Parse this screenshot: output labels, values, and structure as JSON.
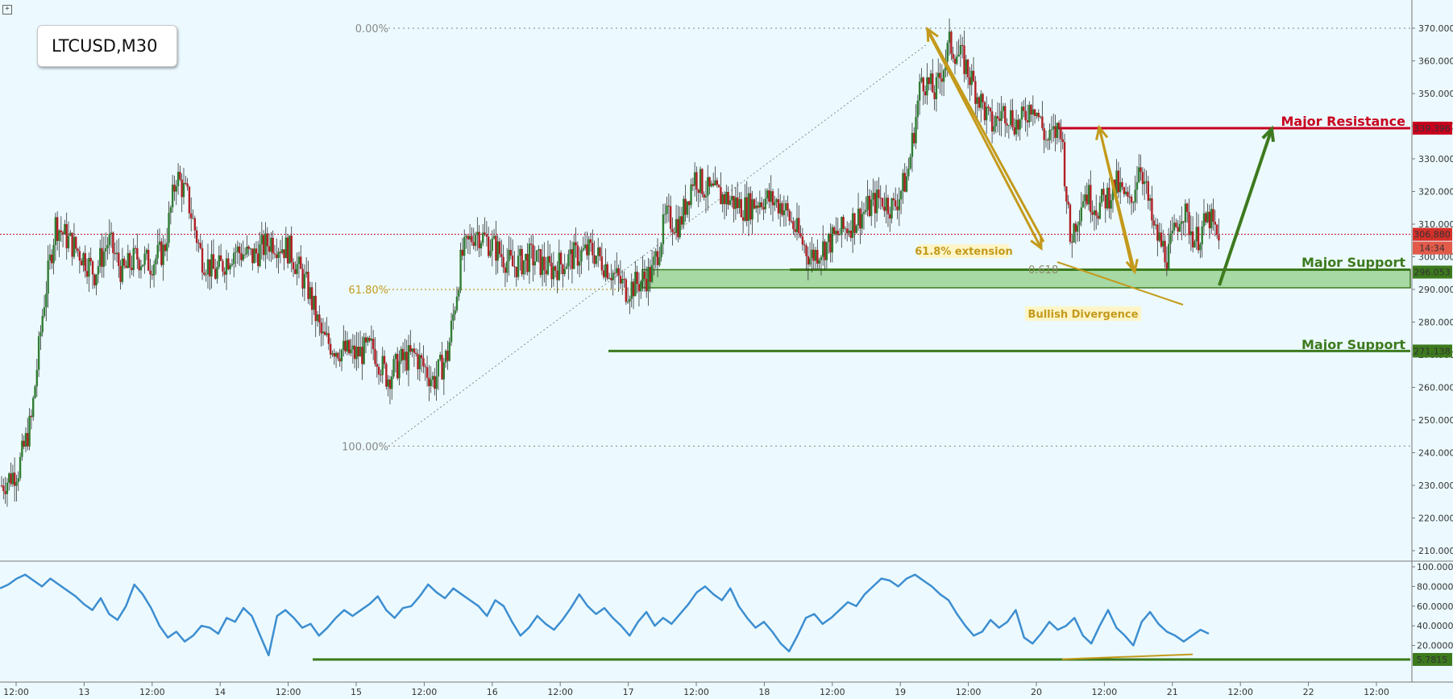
{
  "symbol": "LTCUSD,M30",
  "colors": {
    "background": "#ecfaff",
    "bull_candle": "#2f7d32",
    "bear_candle": "#b11f24",
    "resistance": "#c8001e",
    "support": "#3d7a1e",
    "support_zone": "#8fce85",
    "fib": "#c49a1c",
    "rsi_line": "#3d8ed0",
    "arrow_up": "#3d7a1e",
    "arrow_fib": "#c49a1c"
  },
  "annotations": {
    "major_resistance": "Major Resistance",
    "major_support_1": "Major Support",
    "major_support_2": "Major Support",
    "extension": "61.8% extension",
    "divergence": "Bullish Divergence",
    "fib_0": "0.00%",
    "fib_618": "61.80%",
    "fib_100": "100.00%",
    "fib_ratio": "0.618"
  },
  "price_badges": {
    "resistance": "339.396",
    "current": "306.880",
    "timer": "14:34",
    "support": "296.053",
    "support_2": "271.138",
    "rsi_low": "5.7815"
  },
  "chart_data": [
    {
      "type": "candlestick",
      "title": "LTCUSD,M30",
      "y_ticks": [
        "370.000",
        "360.000",
        "350.000",
        "340.000",
        "330.000",
        "320.000",
        "310.000",
        "300.000",
        "290.000",
        "280.000",
        "270.000",
        "260.000",
        "250.000",
        "240.000",
        "230.000",
        "220.000",
        "210.000"
      ],
      "x_ticks": [
        "12:00",
        "13",
        "12:00",
        "14",
        "12:00",
        "15",
        "12:00",
        "16",
        "12:00",
        "17",
        "12:00",
        "18",
        "12:00",
        "19",
        "12:00",
        "20",
        "12:00",
        "21",
        "12:00",
        "22",
        "12:00"
      ],
      "ylim": [
        207,
        377
      ],
      "close_path": [
        {
          "t": 0,
          "p": 230
        },
        {
          "t": 18,
          "p": 235
        },
        {
          "t": 32,
          "p": 250
        },
        {
          "t": 45,
          "p": 285
        },
        {
          "t": 58,
          "p": 310
        },
        {
          "t": 72,
          "p": 305
        },
        {
          "t": 88,
          "p": 300
        },
        {
          "t": 100,
          "p": 295
        },
        {
          "t": 115,
          "p": 305
        },
        {
          "t": 130,
          "p": 295
        },
        {
          "t": 145,
          "p": 300
        },
        {
          "t": 160,
          "p": 298
        },
        {
          "t": 175,
          "p": 302
        },
        {
          "t": 188,
          "p": 325
        },
        {
          "t": 200,
          "p": 318
        },
        {
          "t": 215,
          "p": 300
        },
        {
          "t": 230,
          "p": 295
        },
        {
          "t": 250,
          "p": 302
        },
        {
          "t": 270,
          "p": 300
        },
        {
          "t": 290,
          "p": 305
        },
        {
          "t": 310,
          "p": 302
        },
        {
          "t": 330,
          "p": 290
        },
        {
          "t": 345,
          "p": 275
        },
        {
          "t": 360,
          "p": 272
        },
        {
          "t": 380,
          "p": 270
        },
        {
          "t": 400,
          "p": 272
        },
        {
          "t": 415,
          "p": 263
        },
        {
          "t": 430,
          "p": 268
        },
        {
          "t": 445,
          "p": 270
        },
        {
          "t": 465,
          "p": 262
        },
        {
          "t": 480,
          "p": 270
        },
        {
          "t": 495,
          "p": 300
        },
        {
          "t": 510,
          "p": 308
        },
        {
          "t": 530,
          "p": 303
        },
        {
          "t": 550,
          "p": 297
        },
        {
          "t": 570,
          "p": 300
        },
        {
          "t": 590,
          "p": 296
        },
        {
          "t": 615,
          "p": 300
        },
        {
          "t": 635,
          "p": 302
        },
        {
          "t": 655,
          "p": 296
        },
        {
          "t": 672,
          "p": 290
        },
        {
          "t": 685,
          "p": 292
        },
        {
          "t": 700,
          "p": 295
        },
        {
          "t": 715,
          "p": 312
        },
        {
          "t": 730,
          "p": 310
        },
        {
          "t": 745,
          "p": 325
        },
        {
          "t": 760,
          "p": 320
        },
        {
          "t": 780,
          "p": 318
        },
        {
          "t": 800,
          "p": 315
        },
        {
          "t": 820,
          "p": 318
        },
        {
          "t": 840,
          "p": 316
        },
        {
          "t": 855,
          "p": 308
        },
        {
          "t": 870,
          "p": 300
        },
        {
          "t": 885,
          "p": 303
        },
        {
          "t": 905,
          "p": 308
        },
        {
          "t": 925,
          "p": 313
        },
        {
          "t": 945,
          "p": 318
        },
        {
          "t": 960,
          "p": 315
        },
        {
          "t": 975,
          "p": 325
        },
        {
          "t": 990,
          "p": 355
        },
        {
          "t": 1005,
          "p": 350
        },
        {
          "t": 1020,
          "p": 365
        },
        {
          "t": 1035,
          "p": 360
        },
        {
          "t": 1050,
          "p": 350
        },
        {
          "t": 1065,
          "p": 340
        },
        {
          "t": 1080,
          "p": 345
        },
        {
          "t": 1095,
          "p": 340
        },
        {
          "t": 1110,
          "p": 348
        },
        {
          "t": 1125,
          "p": 335
        },
        {
          "t": 1140,
          "p": 340
        },
        {
          "t": 1150,
          "p": 305
        },
        {
          "t": 1165,
          "p": 320
        },
        {
          "t": 1180,
          "p": 315
        },
        {
          "t": 1200,
          "p": 322
        },
        {
          "t": 1215,
          "p": 315
        },
        {
          "t": 1225,
          "p": 330
        },
        {
          "t": 1240,
          "p": 308
        },
        {
          "t": 1255,
          "p": 300
        },
        {
          "t": 1270,
          "p": 315
        },
        {
          "t": 1285,
          "p": 305
        },
        {
          "t": 1300,
          "p": 312
        },
        {
          "t": 1310,
          "p": 304
        }
      ]
    },
    {
      "type": "line",
      "title": "RSI",
      "y_ticks": [
        "100.0000",
        "80.0000",
        "60.0000",
        "40.0000",
        "20.0000"
      ],
      "ylim": [
        0,
        100
      ],
      "values": [
        78,
        82,
        88,
        92,
        86,
        80,
        88,
        82,
        76,
        70,
        62,
        56,
        68,
        52,
        46,
        60,
        82,
        72,
        58,
        40,
        28,
        34,
        24,
        30,
        40,
        38,
        32,
        48,
        44,
        58,
        50,
        30,
        10,
        50,
        56,
        48,
        38,
        42,
        30,
        38,
        48,
        56,
        50,
        56,
        62,
        70,
        56,
        48,
        58,
        60,
        70,
        82,
        74,
        68,
        78,
        72,
        66,
        60,
        50,
        66,
        60,
        44,
        30,
        38,
        50,
        42,
        36,
        46,
        58,
        72,
        60,
        52,
        58,
        48,
        40,
        30,
        44,
        54,
        40,
        48,
        42,
        52,
        62,
        74,
        80,
        72,
        66,
        78,
        60,
        48,
        38,
        44,
        34,
        22,
        14,
        30,
        48,
        52,
        42,
        48,
        56,
        64,
        60,
        72,
        80,
        88,
        86,
        80,
        88,
        92,
        86,
        80,
        72,
        66,
        52,
        40,
        30,
        34,
        46,
        38,
        44,
        56,
        28,
        22,
        32,
        44,
        36,
        40,
        48,
        30,
        22,
        40,
        56,
        38,
        30,
        20,
        44,
        54,
        42,
        34,
        30,
        24,
        30,
        36,
        32
      ]
    }
  ]
}
